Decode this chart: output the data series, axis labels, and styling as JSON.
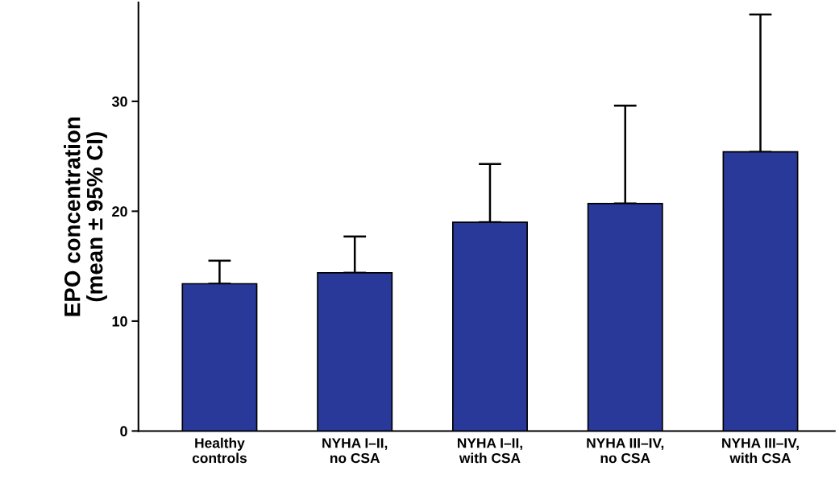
{
  "chart_data": {
    "type": "bar",
    "ylabel": "EPO concentration\n(mean ± 95% CI)",
    "categories": [
      "Healthy\ncontrols",
      "NYHA I–II,\nno CSA",
      "NYHA I–II,\nwith CSA",
      "NYHA III–IV,\nno CSA",
      "NYHA III–IV,\nwith CSA"
    ],
    "values": [
      13.4,
      14.4,
      19.0,
      20.7,
      25.4
    ],
    "errors": [
      [
        13.4,
        15.5
      ],
      [
        14.4,
        17.7
      ],
      [
        19.0,
        24.3
      ],
      [
        20.7,
        29.6
      ],
      [
        25.4,
        37.9
      ]
    ],
    "color": "#28399a",
    "ylim": [
      0,
      39
    ],
    "yticks": [
      0,
      10,
      20,
      30
    ],
    "grid": false,
    "legend": false
  }
}
